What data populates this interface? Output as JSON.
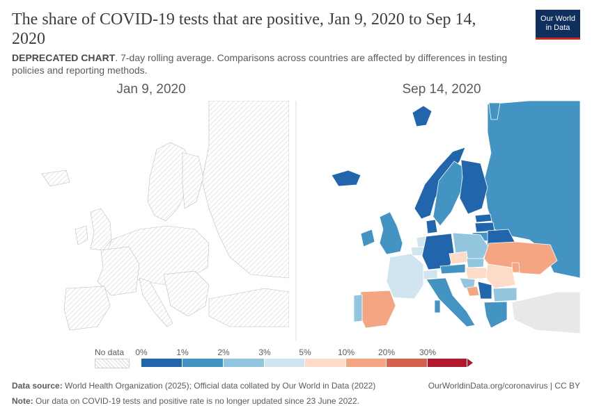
{
  "header": {
    "title": "The share of COVID-19 tests that are positive, Jan 9, 2020 to Sep 14, 2020",
    "subtitle_strong": "DEPRECATED CHART",
    "subtitle_rest": ". 7-day rolling average. Comparisons across countries are affected by differences in testing policies and reporting methods.",
    "logo_line1": "Our World",
    "logo_line2": "in Data"
  },
  "panels": [
    {
      "date": "Jan 9, 2020"
    },
    {
      "date": "Sep 14, 2020"
    }
  ],
  "legend": {
    "no_data_label": "No data",
    "ticks": [
      "0%",
      "1%",
      "2%",
      "3%",
      "5%",
      "10%",
      "20%",
      "30%"
    ],
    "bins": [
      {
        "color": "#2166ac"
      },
      {
        "color": "#4393c3"
      },
      {
        "color": "#92c5de"
      },
      {
        "color": "#d1e5f0"
      },
      {
        "color": "#fddbc7"
      },
      {
        "color": "#f4a582"
      },
      {
        "color": "#d6604d"
      },
      {
        "color": "#b2182b"
      }
    ],
    "no_data_color": "#e8e8e8"
  },
  "map_data": {
    "Iceland": 0.3,
    "Norway": 0.5,
    "Sweden": 1.0,
    "Finland": 0.3,
    "Russia": 1.5,
    "United Kingdom": 1.5,
    "Ireland": 1.5,
    "France": 4.0,
    "Spain": 11.0,
    "Portugal": 3.5,
    "Germany": 0.8,
    "Denmark": 0.5,
    "Poland": 2.5,
    "Lithuania": 1.0,
    "Latvia": 0.6,
    "Estonia": 0.5,
    "Belarus": 0.8,
    "Ukraine": 12.0,
    "Czechia": 6.0,
    "Austria": 1.5,
    "Hungary": 4.0,
    "Slovakia": 2.0,
    "Romania": 8.0,
    "Italy": 1.5,
    "Switzerland": 3.0,
    "Croatia": 2.5,
    "Bosnia and Herzegovina": 12.0,
    "Serbia": 1.0,
    "Bulgaria": 4.0,
    "Greece": 2.5,
    "Moldova": 10.0,
    "Belgium": 3.5,
    "Netherlands": 4.0
  },
  "footer": {
    "source_label": "Data source:",
    "source_text": " World Health Organization (2025); Official data collated by Our World in Data (2022)",
    "license_text": "OurWorldinData.org/coronavirus | CC BY",
    "note_label": "Note:",
    "note_text": " Our data on COVID-19 tests and positive rate is no longer updated since 23 June 2022."
  }
}
